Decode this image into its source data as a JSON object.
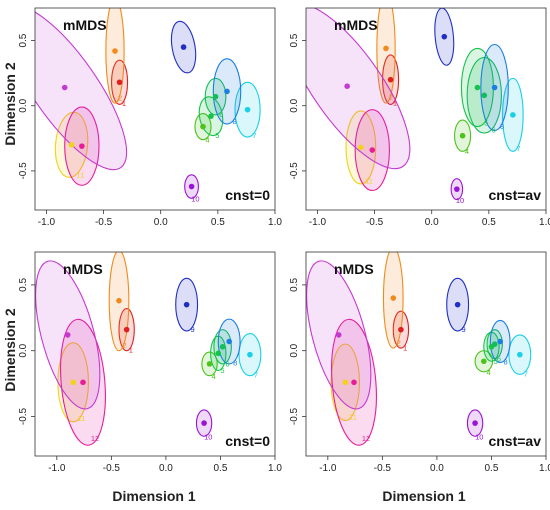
{
  "axes": {
    "ylabel": "Dimension 2",
    "xlabel": "Dimension 1",
    "x_ticks": [
      "-1.0",
      "-0.5",
      "0.0",
      "0.5",
      "1.0"
    ],
    "y_ticks": [
      "0.5",
      "0.0",
      "-0.5"
    ]
  },
  "colors": {
    "1": "#e02020",
    "2": "#f08a1c",
    "3": "#1f2fc4",
    "4": "#4cc21a",
    "5": "#16c44a",
    "6": "#14bd5a",
    "7": "#19d0e6",
    "8": "#1a7fe0",
    "9": "#1f2fc4",
    "10": "#9b14d4",
    "11": "#f2d21a",
    "12": "#e81c9a",
    "purple": "#c43ad1"
  },
  "chart_data": [
    {
      "type": "scatter",
      "title": "mMDS",
      "note": "cnst=0",
      "xlim": [
        -1.1,
        1.0
      ],
      "ylim": [
        -0.8,
        0.75
      ],
      "points": [
        {
          "id": "1",
          "x": -0.36,
          "y": 0.18,
          "label": "1",
          "ell": {
            "rx": 0.07,
            "ry": 0.17,
            "rot": 0
          }
        },
        {
          "id": "2",
          "x": -0.4,
          "y": 0.42,
          "label": "2",
          "ell": {
            "rx": 0.08,
            "ry": 0.4,
            "rot": 0
          }
        },
        {
          "id": "3",
          "x": 0.2,
          "y": 0.45,
          "label": "",
          "ell": {
            "rx": 0.1,
            "ry": 0.2,
            "rot": 10
          }
        },
        {
          "id": "4",
          "x": 0.37,
          "y": -0.16,
          "label": "4",
          "ell": {
            "rx": 0.07,
            "ry": 0.1,
            "rot": 0
          }
        },
        {
          "id": "5",
          "x": 0.44,
          "y": -0.08,
          "label": "5",
          "ell": {
            "rx": 0.1,
            "ry": 0.15,
            "rot": 10
          }
        },
        {
          "id": "6",
          "x": 0.48,
          "y": 0.07,
          "label": "6",
          "ell": {
            "rx": 0.09,
            "ry": 0.14,
            "rot": 0
          }
        },
        {
          "id": "7",
          "x": 0.76,
          "y": -0.03,
          "label": "7",
          "ell": {
            "rx": 0.11,
            "ry": 0.21,
            "rot": 0
          }
        },
        {
          "id": "8",
          "x": 0.58,
          "y": 0.11,
          "label": "8",
          "ell": {
            "rx": 0.12,
            "ry": 0.25,
            "rot": 0
          }
        },
        {
          "id": "10",
          "x": 0.27,
          "y": -0.62,
          "label": "10",
          "ell": {
            "rx": 0.06,
            "ry": 0.09,
            "rot": 0
          }
        },
        {
          "id": "11",
          "x": -0.78,
          "y": -0.3,
          "label": "11",
          "ell": {
            "rx": 0.14,
            "ry": 0.25,
            "rot": -5
          }
        },
        {
          "id": "12",
          "x": -0.69,
          "y": -0.31,
          "label": "",
          "ell": {
            "rx": 0.15,
            "ry": 0.3,
            "rot": 0
          }
        },
        {
          "id": "purple",
          "x": -0.84,
          "y": 0.14,
          "label": "",
          "ell": {
            "rx": 0.28,
            "ry": 0.75,
            "rot": 35
          }
        }
      ]
    },
    {
      "type": "scatter",
      "title": "mMDS",
      "note": "cnst=av",
      "xlim": [
        -1.1,
        1.0
      ],
      "ylim": [
        -0.8,
        0.75
      ],
      "points": [
        {
          "id": "1",
          "x": -0.36,
          "y": 0.2,
          "label": "1",
          "ell": {
            "rx": 0.07,
            "ry": 0.19,
            "rot": 0
          }
        },
        {
          "id": "2",
          "x": -0.4,
          "y": 0.44,
          "label": "2",
          "ell": {
            "rx": 0.08,
            "ry": 0.42,
            "rot": 0
          }
        },
        {
          "id": "3",
          "x": 0.11,
          "y": 0.53,
          "label": "",
          "ell": {
            "rx": 0.08,
            "ry": 0.22,
            "rot": 5
          }
        },
        {
          "id": "4",
          "x": 0.27,
          "y": -0.23,
          "label": "4",
          "ell": {
            "rx": 0.07,
            "ry": 0.12,
            "rot": 0
          }
        },
        {
          "id": "5",
          "x": 0.4,
          "y": 0.14,
          "label": "5",
          "ell": {
            "rx": 0.14,
            "ry": 0.3,
            "rot": 0
          }
        },
        {
          "id": "6",
          "x": 0.46,
          "y": 0.08,
          "label": "6",
          "ell": {
            "rx": 0.15,
            "ry": 0.29,
            "rot": 0
          }
        },
        {
          "id": "7",
          "x": 0.71,
          "y": -0.07,
          "label": "7",
          "ell": {
            "rx": 0.09,
            "ry": 0.28,
            "rot": 0
          }
        },
        {
          "id": "8",
          "x": 0.55,
          "y": 0.14,
          "label": "8",
          "ell": {
            "rx": 0.12,
            "ry": 0.33,
            "rot": 0
          }
        },
        {
          "id": "10",
          "x": 0.22,
          "y": -0.64,
          "label": "10",
          "ell": {
            "rx": 0.05,
            "ry": 0.08,
            "rot": 0
          }
        },
        {
          "id": "11",
          "x": -0.62,
          "y": -0.32,
          "label": "11",
          "ell": {
            "rx": 0.13,
            "ry": 0.28,
            "rot": 0
          }
        },
        {
          "id": "12",
          "x": -0.52,
          "y": -0.34,
          "label": "",
          "ell": {
            "rx": 0.15,
            "ry": 0.31,
            "rot": 0
          }
        },
        {
          "id": "purple",
          "x": -0.74,
          "y": 0.15,
          "label": "",
          "ell": {
            "rx": 0.3,
            "ry": 0.75,
            "rot": 35
          }
        }
      ]
    },
    {
      "type": "scatter",
      "title": "nMDS",
      "note": "cnst=0",
      "xlim": [
        -1.2,
        1.0
      ],
      "ylim": [
        -0.8,
        0.75
      ],
      "points": [
        {
          "id": "1",
          "x": -0.36,
          "y": 0.16,
          "label": "1",
          "ell": {
            "rx": 0.07,
            "ry": 0.16,
            "rot": 0
          }
        },
        {
          "id": "2",
          "x": -0.43,
          "y": 0.38,
          "label": "2",
          "ell": {
            "rx": 0.09,
            "ry": 0.38,
            "rot": 0
          }
        },
        {
          "id": "4",
          "x": 0.4,
          "y": -0.1,
          "label": "4",
          "ell": {
            "rx": 0.07,
            "ry": 0.09,
            "rot": 0
          }
        },
        {
          "id": "5",
          "x": 0.48,
          "y": -0.02,
          "label": "5",
          "ell": {
            "rx": 0.07,
            "ry": 0.13,
            "rot": 0
          }
        },
        {
          "id": "6",
          "x": 0.52,
          "y": 0.03,
          "label": "6",
          "ell": {
            "rx": 0.08,
            "ry": 0.13,
            "rot": 0
          }
        },
        {
          "id": "7",
          "x": 0.77,
          "y": -0.03,
          "label": "7",
          "ell": {
            "rx": 0.1,
            "ry": 0.16,
            "rot": 0
          }
        },
        {
          "id": "8",
          "x": 0.58,
          "y": 0.07,
          "label": "8",
          "ell": {
            "rx": 0.1,
            "ry": 0.17,
            "rot": 0
          }
        },
        {
          "id": "9",
          "x": 0.19,
          "y": 0.35,
          "label": "9",
          "ell": {
            "rx": 0.1,
            "ry": 0.2,
            "rot": 0
          }
        },
        {
          "id": "10",
          "x": 0.35,
          "y": -0.55,
          "label": "10",
          "ell": {
            "rx": 0.07,
            "ry": 0.1,
            "rot": 0
          }
        },
        {
          "id": "11",
          "x": -0.85,
          "y": -0.24,
          "label": "11",
          "ell": {
            "rx": 0.14,
            "ry": 0.3,
            "rot": 0
          }
        },
        {
          "id": "12",
          "x": -0.76,
          "y": -0.24,
          "label": "12",
          "ell": {
            "rx": 0.2,
            "ry": 0.48,
            "rot": 5
          }
        },
        {
          "id": "purple",
          "x": -0.9,
          "y": 0.12,
          "label": "",
          "ell": {
            "rx": 0.24,
            "ry": 0.58,
            "rot": 15
          }
        }
      ]
    },
    {
      "type": "scatter",
      "title": "nMDS",
      "note": "cnst=av",
      "xlim": [
        -1.2,
        1.0
      ],
      "ylim": [
        -0.8,
        0.75
      ],
      "points": [
        {
          "id": "1",
          "x": -0.33,
          "y": 0.16,
          "label": "1",
          "ell": {
            "rx": 0.07,
            "ry": 0.14,
            "rot": 0
          }
        },
        {
          "id": "2",
          "x": -0.4,
          "y": 0.4,
          "label": "2",
          "ell": {
            "rx": 0.09,
            "ry": 0.38,
            "rot": 0
          }
        },
        {
          "id": "4",
          "x": 0.43,
          "y": -0.08,
          "label": "4",
          "ell": {
            "rx": 0.08,
            "ry": 0.08,
            "rot": 0
          }
        },
        {
          "id": "5",
          "x": 0.5,
          "y": 0.03,
          "label": "5",
          "ell": {
            "rx": 0.07,
            "ry": 0.11,
            "rot": 0
          }
        },
        {
          "id": "6",
          "x": 0.53,
          "y": 0.05,
          "label": "6",
          "ell": {
            "rx": 0.07,
            "ry": 0.11,
            "rot": 0
          }
        },
        {
          "id": "7",
          "x": 0.76,
          "y": -0.03,
          "label": "7",
          "ell": {
            "rx": 0.1,
            "ry": 0.15,
            "rot": 0
          }
        },
        {
          "id": "8",
          "x": 0.58,
          "y": 0.07,
          "label": "8",
          "ell": {
            "rx": 0.09,
            "ry": 0.16,
            "rot": 0
          }
        },
        {
          "id": "9",
          "x": 0.19,
          "y": 0.35,
          "label": "9",
          "ell": {
            "rx": 0.1,
            "ry": 0.2,
            "rot": 0
          }
        },
        {
          "id": "10",
          "x": 0.35,
          "y": -0.55,
          "label": "10",
          "ell": {
            "rx": 0.07,
            "ry": 0.1,
            "rot": 0
          }
        },
        {
          "id": "11",
          "x": -0.84,
          "y": -0.24,
          "label": "11",
          "ell": {
            "rx": 0.13,
            "ry": 0.29,
            "rot": 0
          }
        },
        {
          "id": "12",
          "x": -0.76,
          "y": -0.24,
          "label": "12",
          "ell": {
            "rx": 0.2,
            "ry": 0.48,
            "rot": 5
          }
        },
        {
          "id": "purple",
          "x": -0.9,
          "y": 0.12,
          "label": "",
          "ell": {
            "rx": 0.24,
            "ry": 0.58,
            "rot": 15
          }
        }
      ]
    }
  ]
}
